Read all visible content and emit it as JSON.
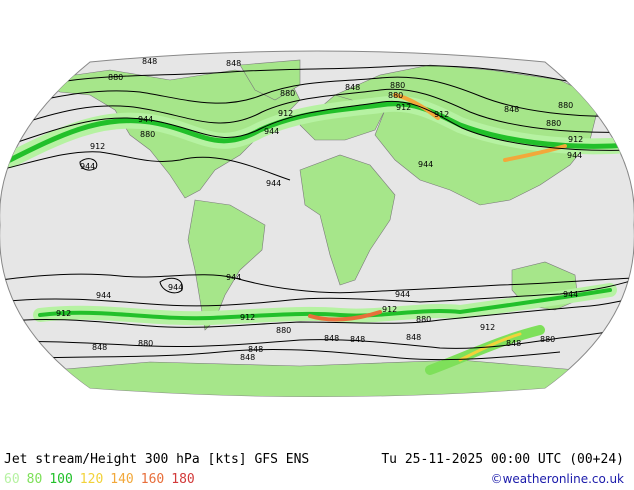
{
  "header": {
    "title": "Jet stream/Height 300 hPa [kts] GFS ENS",
    "datetime": "Tu 25-11-2025 00:00 UTC (00+24)"
  },
  "legend": {
    "items": [
      {
        "label": "60",
        "color": "#b6f2a2"
      },
      {
        "label": "80",
        "color": "#7ee05a"
      },
      {
        "label": "100",
        "color": "#22c02a"
      },
      {
        "label": "120",
        "color": "#f2d23a"
      },
      {
        "label": "140",
        "color": "#f2a83a"
      },
      {
        "label": "160",
        "color": "#e86e3a"
      },
      {
        "label": "180",
        "color": "#d23a3a"
      }
    ]
  },
  "credit": "©weatheronline.co.uk",
  "map": {
    "land_color": "#a6e68a",
    "ocean_color": "#e6e6e6",
    "contour_labels": [
      "848",
      "848",
      "880",
      "880",
      "912",
      "944",
      "944",
      "880",
      "912",
      "944",
      "848",
      "880",
      "912",
      "880",
      "912",
      "944",
      "848",
      "880",
      "880",
      "912",
      "944",
      "944",
      "944",
      "944",
      "944",
      "944",
      "912",
      "912",
      "880",
      "912",
      "848",
      "880",
      "848",
      "848",
      "848",
      "848",
      "848",
      "880",
      "912",
      "944",
      "848",
      "880"
    ]
  }
}
